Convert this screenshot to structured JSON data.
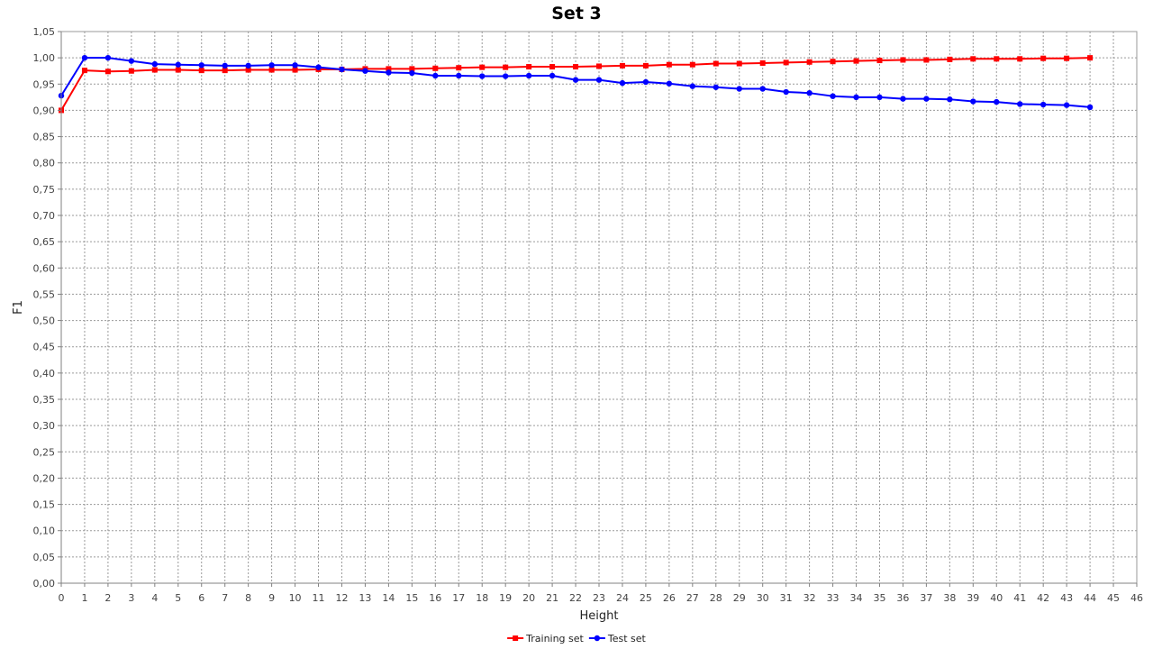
{
  "chart_data": {
    "type": "line",
    "title": "Set 3",
    "xlabel": "Height",
    "ylabel": "F1",
    "xlim": [
      0,
      46
    ],
    "ylim": [
      0,
      1.05
    ],
    "x_ticks": [
      "0",
      "1",
      "2",
      "3",
      "4",
      "5",
      "6",
      "7",
      "8",
      "9",
      "10",
      "11",
      "12",
      "13",
      "14",
      "15",
      "16",
      "17",
      "18",
      "19",
      "20",
      "21",
      "22",
      "23",
      "24",
      "25",
      "26",
      "27",
      "28",
      "29",
      "30",
      "31",
      "32",
      "33",
      "34",
      "35",
      "36",
      "37",
      "38",
      "39",
      "40",
      "41",
      "42",
      "43",
      "44",
      "45",
      "46"
    ],
    "y_ticks": [
      "0,00",
      "0,05",
      "0,10",
      "0,15",
      "0,20",
      "0,25",
      "0,30",
      "0,35",
      "0,40",
      "0,45",
      "0,50",
      "0,55",
      "0,60",
      "0,65",
      "0,70",
      "0,75",
      "0,80",
      "0,85",
      "0,90",
      "0,95",
      "1,00",
      "1,05"
    ],
    "grid": true,
    "legend_position": "bottom-center",
    "x": [
      0,
      1,
      2,
      3,
      4,
      5,
      6,
      7,
      8,
      9,
      10,
      11,
      12,
      13,
      14,
      15,
      16,
      17,
      18,
      19,
      20,
      21,
      22,
      23,
      24,
      25,
      26,
      27,
      28,
      29,
      30,
      31,
      32,
      33,
      34,
      35,
      36,
      37,
      38,
      39,
      40,
      41,
      42,
      43,
      44
    ],
    "series": [
      {
        "name": "Training set",
        "color": "#ff0000",
        "marker": "square",
        "values": [
          0.9,
          0.976,
          0.974,
          0.975,
          0.977,
          0.977,
          0.976,
          0.976,
          0.977,
          0.977,
          0.977,
          0.978,
          0.978,
          0.979,
          0.979,
          0.979,
          0.98,
          0.981,
          0.982,
          0.982,
          0.983,
          0.983,
          0.983,
          0.984,
          0.985,
          0.985,
          0.987,
          0.987,
          0.989,
          0.989,
          0.99,
          0.991,
          0.992,
          0.993,
          0.994,
          0.995,
          0.996,
          0.996,
          0.997,
          0.998,
          0.998,
          0.998,
          0.999,
          0.999,
          1.0
        ]
      },
      {
        "name": "Test set",
        "color": "#0000ff",
        "marker": "circle",
        "values": [
          0.928,
          1.0,
          1.0,
          0.994,
          0.988,
          0.987,
          0.986,
          0.985,
          0.985,
          0.986,
          0.986,
          0.982,
          0.978,
          0.975,
          0.972,
          0.971,
          0.966,
          0.966,
          0.965,
          0.965,
          0.966,
          0.966,
          0.958,
          0.958,
          0.952,
          0.954,
          0.951,
          0.946,
          0.944,
          0.941,
          0.941,
          0.935,
          0.933,
          0.927,
          0.925,
          0.925,
          0.922,
          0.922,
          0.921,
          0.917,
          0.916,
          0.912,
          0.911,
          0.91,
          0.906
        ]
      }
    ]
  }
}
